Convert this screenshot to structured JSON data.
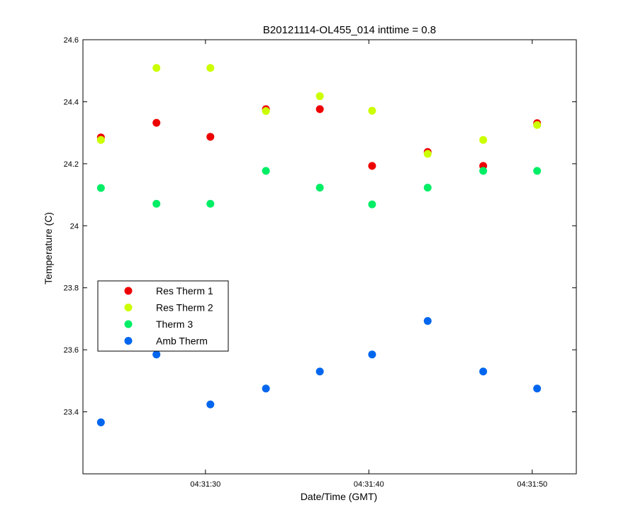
{
  "chart_data": {
    "type": "scatter",
    "title": "B20121114-OL455_014 inttime = 0.8",
    "xlabel": "Date/Time (GMT)",
    "ylabel": "Temperature (C)",
    "xlim": [
      "04:31:22.5",
      "04:31:52.7"
    ],
    "ylim": [
      23.2,
      24.6
    ],
    "x_tick_labels": [
      "04:31:30",
      "04:31:40",
      "04:31:50"
    ],
    "y_tick_labels": [
      "23.4",
      "23.6",
      "23.8",
      "24",
      "24.2",
      "24.4",
      "24.6"
    ],
    "grid": false,
    "legend_position": "middle-left",
    "x": [
      "04:31:23.6",
      "04:31:27.0",
      "04:31:30.3",
      "04:31:33.7",
      "04:31:37.0",
      "04:31:40.2",
      "04:31:43.6",
      "04:31:47.0",
      "04:31:50.3"
    ],
    "series": [
      {
        "name": "Res Therm 1",
        "color": "#ee0000",
        "values": [
          24.285,
          24.332,
          24.287,
          24.376,
          24.376,
          24.193,
          24.238,
          24.193,
          24.331
        ]
      },
      {
        "name": "Res Therm 2",
        "color": "#ccff00",
        "values": [
          24.277,
          24.509,
          24.509,
          24.37,
          24.418,
          24.371,
          24.232,
          24.277,
          24.325
        ]
      },
      {
        "name": "Therm 3",
        "color": "#00ee66",
        "values": [
          24.122,
          24.071,
          24.071,
          24.177,
          24.123,
          24.069,
          24.123,
          24.177,
          24.177
        ]
      },
      {
        "name": "Amb Therm",
        "color": "#0066ee",
        "values": [
          23.366,
          23.585,
          23.424,
          23.475,
          23.53,
          23.585,
          23.693,
          23.53,
          23.475
        ]
      }
    ]
  }
}
